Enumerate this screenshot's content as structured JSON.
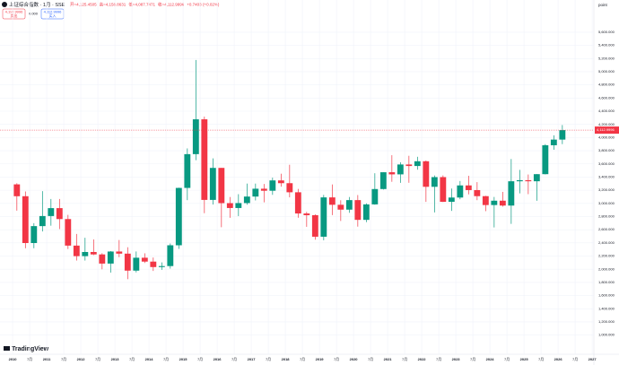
{
  "chart_data": {
    "type": "candlestick",
    "title": "上证综合指数 · 1月 · SSE",
    "ohlc_header": [
      "开=4,125.4505",
      "高=4,158.8631",
      "低=4,087.7471",
      "收=4,112.9996",
      "+0.7403 (+0.02%)"
    ],
    "toolbar": {
      "sell_price": "4,112.9996",
      "sell": "卖出",
      "spread": "0.000",
      "buy_price": "4,112.9996",
      "buy": "买入"
    },
    "unit": "point",
    "brand": "TradingView",
    "up_color": "#089981",
    "down_color": "#f23645",
    "grid": true,
    "last_price": {
      "value": 4112.9996,
      "label": "4,112.9996"
    },
    "x": [
      2010.125,
      2010.375,
      2010.625,
      2010.875,
      2011.125,
      2011.375,
      2011.625,
      2011.875,
      2012.125,
      2012.375,
      2012.625,
      2012.875,
      2013.125,
      2013.375,
      2013.625,
      2013.875,
      2014.125,
      2014.375,
      2014.625,
      2014.875,
      2015.125,
      2015.375,
      2015.625,
      2015.875,
      2016.125,
      2016.375,
      2016.625,
      2016.875,
      2017.125,
      2017.375,
      2017.625,
      2017.875,
      2018.125,
      2018.375,
      2018.625,
      2018.875,
      2019.125,
      2019.375,
      2019.625,
      2019.875,
      2020.125,
      2020.375,
      2020.625,
      2020.875,
      2021.125,
      2021.375,
      2021.625,
      2021.875,
      2022.125,
      2022.375,
      2022.625,
      2022.875,
      2023.125,
      2023.375,
      2023.625,
      2023.875,
      2024.125,
      2024.375,
      2024.625,
      2024.875,
      2025.125,
      2025.375,
      2025.625,
      2025.875,
      2026.125
    ],
    "open": [
      3289,
      3109,
      2398,
      2655,
      2808,
      2928,
      2762,
      2359,
      2199,
      2262,
      2225,
      2086,
      2269,
      2237,
      1979,
      2175,
      2116,
      2033,
      2048,
      2364,
      3235,
      3748,
      4277,
      3053,
      3539,
      3004,
      2930,
      3005,
      3104,
      3223,
      3192,
      3349,
      3307,
      3169,
      2847,
      2821,
      2494,
      3091,
      2979,
      2905,
      3050,
      2750,
      2985,
      3218,
      3473,
      3441,
      3591,
      3568,
      3640,
      3252,
      3399,
      3024,
      3089,
      3273,
      3202,
      3110,
      2975,
      3041,
      2967,
      3336,
      3352,
      3336,
      3444,
      3883,
      3969
    ],
    "high": [
      3306,
      3181,
      2700,
      3186,
      3067,
      3067,
      2826,
      2536,
      2478,
      2453,
      2243,
      2276,
      2444,
      2334,
      2270,
      2242,
      2178,
      2104,
      2391,
      3239,
      3835,
      5178,
      4318,
      3684,
      3539,
      3097,
      3140,
      3301,
      3301,
      3295,
      3391,
      3451,
      3587,
      3220,
      2872,
      2833,
      3129,
      3288,
      3048,
      3097,
      3127,
      3000,
      3458,
      3474,
      3732,
      3625,
      3723,
      3708,
      3651,
      3424,
      3425,
      3226,
      3340,
      3419,
      3323,
      3115,
      3098,
      3175,
      3674,
      3509,
      3439,
      3445,
      3900,
      4034,
      4190
    ],
    "low": [
      2890,
      2319,
      2319,
      2574,
      2661,
      2610,
      2307,
      2132,
      2132,
      2214,
      1999,
      1949,
      2183,
      1849,
      1952,
      2095,
      1974,
      1991,
      2010,
      2309,
      3049,
      3656,
      2851,
      2983,
      2638,
      2781,
      2807,
      2980,
      3045,
      3016,
      3130,
      3254,
      3092,
      2782,
      2644,
      2449,
      2440,
      2822,
      2733,
      2857,
      2647,
      2715,
      2980,
      3210,
      3328,
      3312,
      3313,
      3512,
      3023,
      2863,
      3021,
      2886,
      3063,
      3137,
      3049,
      2882,
      2635,
      2951,
      2689,
      3152,
      3140,
      3040,
      3440,
      3815,
      3900
    ],
    "close": [
      3109,
      2398,
      2655,
      2808,
      2928,
      2762,
      2359,
      2199,
      2262,
      2225,
      2086,
      2269,
      2237,
      1979,
      2175,
      2116,
      2033,
      2048,
      2364,
      3235,
      3748,
      4277,
      3053,
      3539,
      3004,
      2930,
      3005,
      3104,
      3223,
      3192,
      3349,
      3307,
      3169,
      2847,
      2821,
      2494,
      3091,
      2979,
      2905,
      3050,
      2750,
      2985,
      3218,
      3473,
      3441,
      3591,
      3568,
      3640,
      3252,
      3399,
      3024,
      3089,
      3273,
      3202,
      3110,
      2975,
      3041,
      2967,
      3336,
      3352,
      3336,
      3444,
      3883,
      3969,
      4113
    ],
    "xlim": [
      2009.63,
      2027.05
    ],
    "ylim": [
      750,
      5980
    ],
    "xticks": [
      2010,
      {
        "value": 2010.5,
        "label": "7月"
      },
      2011,
      {
        "value": 2011.5,
        "label": "7月"
      },
      2012,
      {
        "value": 2012.5,
        "label": "7月"
      },
      2013,
      {
        "value": 2013.5,
        "label": "7月"
      },
      2014,
      {
        "value": 2014.5,
        "label": "7月"
      },
      2015,
      {
        "value": 2015.5,
        "label": "7月"
      },
      2016,
      {
        "value": 2016.5,
        "label": "7月"
      },
      2017,
      {
        "value": 2017.5,
        "label": "7月"
      },
      2018,
      {
        "value": 2018.5,
        "label": "7月"
      },
      2019,
      {
        "value": 2019.5,
        "label": "7月"
      },
      2020,
      {
        "value": 2020.5,
        "label": "7月"
      },
      2021,
      {
        "value": 2021.5,
        "label": "7月"
      },
      2022,
      {
        "value": 2022.5,
        "label": "7月"
      },
      2023,
      {
        "value": 2023.5,
        "label": "7月"
      },
      2024,
      {
        "value": 2024.5,
        "label": "7月"
      },
      2025,
      {
        "value": 2025.5,
        "label": "7月"
      },
      2026,
      {
        "value": 2026.5,
        "label": "7月"
      },
      2027
    ],
    "yticks": [
      {
        "value": 1000,
        "label": "1,000.000"
      },
      {
        "value": 1200,
        "label": "1,200.000"
      },
      {
        "value": 1400,
        "label": "1,400.000"
      },
      {
        "value": 1600,
        "label": "1,600.000"
      },
      {
        "value": 1800,
        "label": "1,800.000"
      },
      {
        "value": 2000,
        "label": "2,000.000"
      },
      {
        "value": 2200,
        "label": "2,200.000"
      },
      {
        "value": 2400,
        "label": "2,400.000"
      },
      {
        "value": 2600,
        "label": "2,600.000"
      },
      {
        "value": 2800,
        "label": "2,800.000"
      },
      {
        "value": 3000,
        "label": "3,000.000"
      },
      {
        "value": 3200,
        "label": "3,200.000"
      },
      {
        "value": 3400,
        "label": "3,400.000"
      },
      {
        "value": 3600,
        "label": "3,600.000"
      },
      {
        "value": 3800,
        "label": "3,800.000"
      },
      {
        "value": 4000,
        "label": "4,000.000"
      },
      {
        "value": 4200,
        "label": "4,200.000"
      },
      {
        "value": 4400,
        "label": "4,400.000"
      },
      {
        "value": 4600,
        "label": "4,600.000"
      },
      {
        "value": 4800,
        "label": "4,800.000"
      },
      {
        "value": 5000,
        "label": "5,000.000"
      },
      {
        "value": 5200,
        "label": "5,200.000"
      },
      {
        "value": 5400,
        "label": "5,400.000"
      },
      {
        "value": 5600,
        "label": "5,600.000"
      }
    ]
  }
}
